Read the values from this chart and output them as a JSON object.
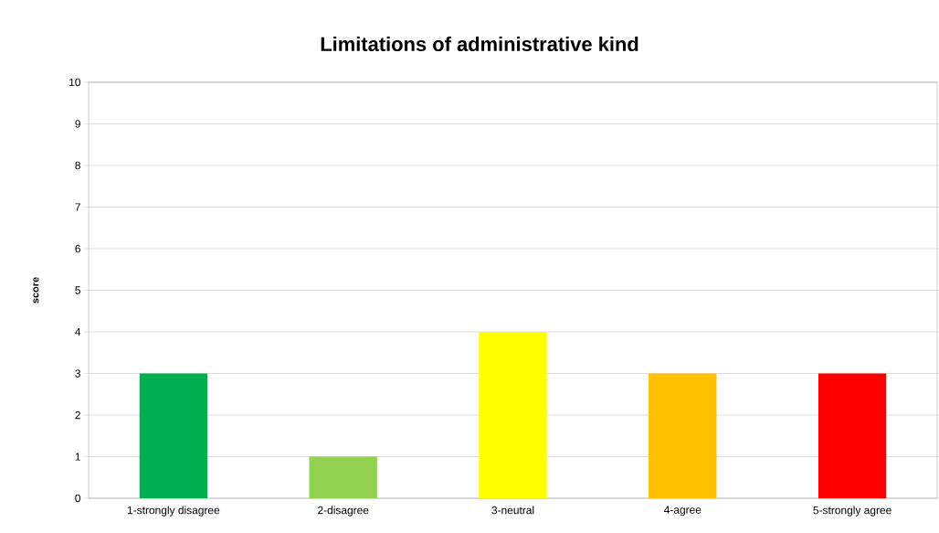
{
  "chart_data": {
    "type": "bar",
    "title": "Limitations of administrative kind",
    "ylabel": "score",
    "categories": [
      "1-strongly disagree",
      "2-disagree",
      "3-neutral",
      "4-agree",
      "5-strongly agree"
    ],
    "values": [
      3,
      1,
      4,
      3,
      3
    ],
    "colors": [
      "#00b050",
      "#92d050",
      "#ffff00",
      "#ffc000",
      "#ff0000"
    ],
    "ylim": [
      0,
      10
    ],
    "yticks": [
      0,
      1,
      2,
      3,
      4,
      5,
      6,
      7,
      8,
      9,
      10
    ],
    "grid": "y"
  }
}
